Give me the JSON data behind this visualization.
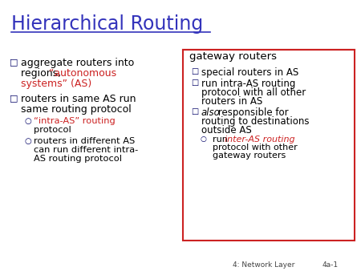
{
  "title": "Hierarchical Routing",
  "title_color": "#3333BB",
  "bg_color": "#FFFFFF",
  "footer_left": "4: Network Layer",
  "footer_right": "4a-1",
  "box_title": "gateway routers",
  "box_border_color": "#CC2222",
  "box_title_color": "#000000"
}
